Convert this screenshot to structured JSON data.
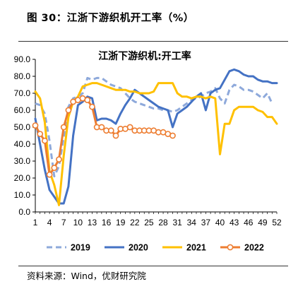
{
  "caption": "图 30：江浙下游织机开工率（%）",
  "source": "资料来源：Wind，优财研究院",
  "chart_data": {
    "type": "line",
    "title": "江浙下游织机:开工率",
    "ylim": [
      0,
      90
    ],
    "yticks": [
      "0.0",
      "10.0",
      "20.0",
      "30.0",
      "40.0",
      "50.0",
      "60.0",
      "70.0",
      "80.0",
      "90.0"
    ],
    "xlim": [
      1,
      52
    ],
    "xticks": [
      "1",
      "4",
      "7",
      "10",
      "13",
      "16",
      "19",
      "22",
      "25",
      "28",
      "31",
      "34",
      "37",
      "40",
      "43",
      "46",
      "49",
      "52"
    ],
    "legend_position": "bottom",
    "series": [
      {
        "name": "2019",
        "color": "#8EA9DB",
        "style": "dashed",
        "markers": false,
        "x": [
          1,
          2,
          3,
          4,
          5,
          6,
          7,
          8,
          9,
          10,
          11,
          12,
          13,
          14,
          15,
          16,
          17,
          18,
          19,
          20,
          21,
          22,
          23,
          24,
          25,
          26,
          27,
          28,
          29,
          30,
          31,
          32,
          33,
          34,
          35,
          36,
          37,
          38,
          39,
          40,
          41,
          42,
          43,
          44,
          45,
          46,
          47,
          48,
          49,
          50,
          51
        ],
        "values": [
          64,
          63,
          58,
          42,
          21,
          27,
          44,
          62,
          67,
          68,
          70,
          79,
          78,
          79,
          79,
          77,
          75,
          74,
          73,
          70,
          67,
          65,
          64,
          63,
          62,
          61,
          61,
          60,
          60,
          59,
          60,
          62,
          64,
          66,
          67,
          68,
          70,
          71,
          73,
          67,
          64,
          72,
          75,
          74,
          72,
          72,
          71,
          69,
          67,
          70,
          64
        ]
      },
      {
        "name": "2020",
        "color": "#4472C4",
        "style": "solid",
        "markers": false,
        "x": [
          1,
          2,
          3,
          4,
          5,
          6,
          7,
          8,
          9,
          10,
          11,
          12,
          13,
          14,
          15,
          16,
          17,
          18,
          19,
          20,
          21,
          22,
          23,
          24,
          25,
          26,
          27,
          28,
          29,
          30,
          31,
          32,
          33,
          34,
          35,
          36,
          37,
          38,
          39,
          40,
          41,
          42,
          43,
          44,
          45,
          46,
          47,
          48,
          49,
          50,
          51,
          52
        ],
        "values": [
          55,
          40,
          25,
          13,
          9,
          5,
          5,
          15,
          45,
          63,
          65,
          68,
          67,
          54,
          55,
          55,
          54,
          52,
          58,
          63,
          67,
          72,
          70,
          68,
          66,
          64,
          62,
          61,
          60,
          50,
          58,
          60,
          62,
          65,
          68,
          70,
          60,
          70,
          72,
          73,
          78,
          83,
          84,
          83,
          81,
          80,
          80,
          78,
          77,
          77,
          76,
          76
        ]
      },
      {
        "name": "2021",
        "color": "#FFC000",
        "style": "solid",
        "markers": false,
        "x": [
          1,
          2,
          3,
          4,
          5,
          6,
          7,
          8,
          9,
          10,
          11,
          12,
          13,
          14,
          15,
          16,
          17,
          18,
          19,
          20,
          21,
          22,
          23,
          24,
          25,
          26,
          27,
          28,
          29,
          30,
          31,
          32,
          33,
          34,
          35,
          36,
          37,
          38,
          39,
          40,
          41,
          42,
          43,
          44,
          45,
          46,
          47,
          48,
          49,
          50,
          51,
          52
        ],
        "values": [
          71,
          67,
          53,
          24,
          16,
          4,
          33,
          56,
          65,
          68,
          74,
          75,
          76,
          76,
          75,
          74,
          73,
          72,
          72,
          72,
          71,
          71,
          70,
          70,
          70,
          71,
          76,
          76,
          76,
          76,
          70,
          68,
          68,
          67,
          68,
          68,
          67,
          68,
          67,
          34,
          52,
          52,
          60,
          62,
          62,
          62,
          62,
          60,
          59,
          56,
          56,
          52
        ]
      },
      {
        "name": "2022",
        "color": "#ED7D31",
        "style": "solid",
        "markers": true,
        "x": [
          1,
          2,
          3,
          4,
          5,
          6,
          7,
          8,
          9,
          10,
          11,
          12,
          13,
          14,
          15,
          16,
          17,
          18,
          19,
          20,
          21,
          22,
          23,
          24,
          25,
          26,
          27,
          28,
          29,
          30
        ],
        "values": [
          51,
          46,
          42,
          22,
          26,
          31,
          50,
          60,
          65,
          66,
          67,
          66,
          62,
          50,
          50,
          48,
          48,
          45,
          49,
          49,
          50,
          48,
          48,
          48,
          48,
          48,
          47,
          47,
          46,
          45
        ]
      }
    ]
  }
}
